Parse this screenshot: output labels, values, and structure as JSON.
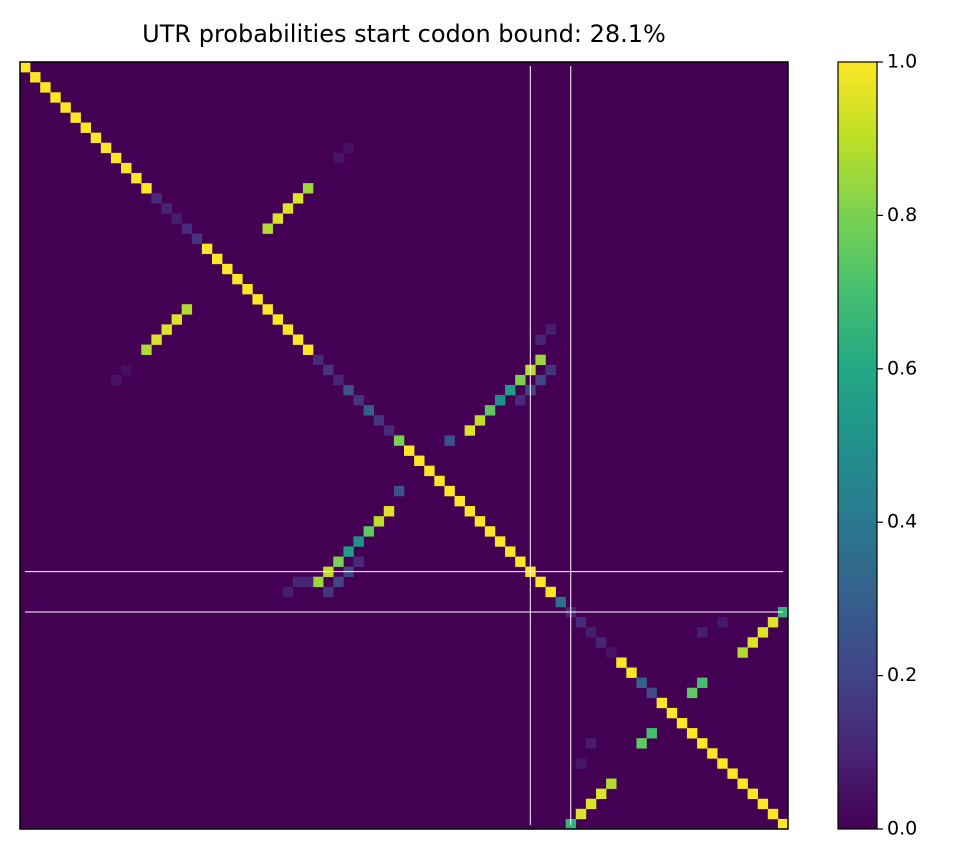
{
  "chart_data": {
    "type": "heatmap",
    "title": "UTR probabilities start codon bound: 28.1%",
    "colormap": "viridis",
    "xlim": [
      -0.5,
      75.5
    ],
    "ylim": [
      75.5,
      -0.5
    ],
    "clim": [
      0,
      1
    ],
    "cticks": [
      {
        "value": 0,
        "label": "0.0"
      },
      0.2,
      0.4,
      0.6,
      0.8,
      {
        "value": 1,
        "label": "1.0"
      }
    ],
    "vlines": [
      50,
      54
    ],
    "hlines": [
      50,
      54
    ],
    "line_color": "#ffffff",
    "cells": [
      [
        0,
        0,
        1
      ],
      [
        1,
        1,
        1
      ],
      [
        2,
        2,
        1
      ],
      [
        3,
        3,
        1
      ],
      [
        4,
        4,
        1
      ],
      [
        5,
        5,
        1
      ],
      [
        6,
        6,
        1
      ],
      [
        7,
        7,
        1
      ],
      [
        8,
        8,
        1
      ],
      [
        9,
        9,
        1
      ],
      [
        10,
        10,
        1
      ],
      [
        11,
        11,
        1
      ],
      [
        12,
        12,
        1
      ],
      [
        13,
        13,
        0.12
      ],
      [
        14,
        14,
        0.1
      ],
      [
        15,
        15,
        0.08
      ],
      [
        16,
        16,
        0.12
      ],
      [
        17,
        17,
        0.15
      ],
      [
        18,
        18,
        1
      ],
      [
        19,
        19,
        1
      ],
      [
        20,
        20,
        1
      ],
      [
        21,
        21,
        1
      ],
      [
        22,
        22,
        1
      ],
      [
        23,
        23,
        1
      ],
      [
        24,
        24,
        1
      ],
      [
        25,
        25,
        1
      ],
      [
        26,
        26,
        1
      ],
      [
        27,
        27,
        1
      ],
      [
        28,
        28,
        1
      ],
      [
        29,
        29,
        0.12
      ],
      [
        30,
        30,
        0.15
      ],
      [
        31,
        31,
        0.1
      ],
      [
        32,
        32,
        0.25
      ],
      [
        33,
        33,
        0.15
      ],
      [
        34,
        34,
        0.3
      ],
      [
        35,
        35,
        0.15
      ],
      [
        36,
        36,
        0.12
      ],
      [
        37,
        37,
        0.8
      ],
      [
        38,
        38,
        1
      ],
      [
        39,
        39,
        1
      ],
      [
        40,
        40,
        1
      ],
      [
        41,
        41,
        1
      ],
      [
        42,
        42,
        1
      ],
      [
        43,
        43,
        1
      ],
      [
        44,
        44,
        1
      ],
      [
        45,
        45,
        1
      ],
      [
        46,
        46,
        1
      ],
      [
        47,
        47,
        1
      ],
      [
        48,
        48,
        1
      ],
      [
        49,
        49,
        1
      ],
      [
        50,
        50,
        1
      ],
      [
        51,
        51,
        1
      ],
      [
        52,
        52,
        1
      ],
      [
        53,
        53,
        0.35
      ],
      [
        54,
        54,
        0.1
      ],
      [
        55,
        55,
        0.12
      ],
      [
        56,
        56,
        0.08
      ],
      [
        57,
        57,
        0.1
      ],
      [
        58,
        58,
        0.05
      ],
      [
        59,
        59,
        1
      ],
      [
        60,
        60,
        1
      ],
      [
        61,
        61,
        0.3
      ],
      [
        62,
        62,
        0.22
      ],
      [
        63,
        63,
        1
      ],
      [
        64,
        64,
        1
      ],
      [
        65,
        65,
        1
      ],
      [
        66,
        66,
        1
      ],
      [
        67,
        67,
        1
      ],
      [
        68,
        68,
        1
      ],
      [
        69,
        69,
        1
      ],
      [
        70,
        70,
        1
      ],
      [
        71,
        71,
        1
      ],
      [
        72,
        72,
        1
      ],
      [
        73,
        73,
        1
      ],
      [
        74,
        74,
        1
      ],
      [
        75,
        75,
        1
      ],
      [
        12,
        28,
        0.85
      ],
      [
        13,
        27,
        0.95
      ],
      [
        14,
        26,
        0.95
      ],
      [
        15,
        25,
        0.95
      ],
      [
        16,
        24,
        0.88
      ],
      [
        24,
        16,
        0.88
      ],
      [
        25,
        15,
        0.95
      ],
      [
        26,
        14,
        0.95
      ],
      [
        27,
        13,
        0.95
      ],
      [
        28,
        12,
        0.88
      ],
      [
        9,
        31,
        0.05
      ],
      [
        8,
        32,
        0.04
      ],
      [
        31,
        9,
        0.05
      ],
      [
        30,
        10,
        0.04
      ],
      [
        26,
        52,
        0.08
      ],
      [
        27,
        51,
        0.1
      ],
      [
        29,
        51,
        0.85
      ],
      [
        30,
        50,
        0.9
      ],
      [
        31,
        49,
        0.8
      ],
      [
        32,
        48,
        0.55
      ],
      [
        33,
        47,
        0.5
      ],
      [
        34,
        46,
        0.75
      ],
      [
        35,
        45,
        0.9
      ],
      [
        36,
        44,
        0.95
      ],
      [
        30,
        52,
        0.15
      ],
      [
        31,
        51,
        0.2
      ],
      [
        32,
        50,
        0.2
      ],
      [
        33,
        49,
        0.12
      ],
      [
        37,
        42,
        0.25
      ],
      [
        44,
        36,
        0.95
      ],
      [
        45,
        35,
        0.9
      ],
      [
        46,
        34,
        0.75
      ],
      [
        47,
        33,
        0.5
      ],
      [
        48,
        32,
        0.55
      ],
      [
        49,
        31,
        0.8
      ],
      [
        50,
        30,
        0.9
      ],
      [
        51,
        29,
        0.85
      ],
      [
        42,
        37,
        0.25
      ],
      [
        49,
        33,
        0.12
      ],
      [
        50,
        32,
        0.2
      ],
      [
        51,
        31,
        0.2
      ],
      [
        52,
        30,
        0.15
      ],
      [
        51,
        27,
        0.1
      ],
      [
        51,
        28,
        0.1
      ],
      [
        52,
        26,
        0.08
      ],
      [
        54,
        75,
        0.65
      ],
      [
        55,
        74,
        0.95
      ],
      [
        56,
        73,
        0.95
      ],
      [
        57,
        72,
        0.95
      ],
      [
        58,
        71,
        0.88
      ],
      [
        71,
        58,
        0.88
      ],
      [
        72,
        57,
        0.95
      ],
      [
        73,
        56,
        0.95
      ],
      [
        74,
        55,
        0.95
      ],
      [
        75,
        54,
        0.65
      ],
      [
        61,
        67,
        0.7
      ],
      [
        62,
        66,
        0.75
      ],
      [
        66,
        62,
        0.7
      ],
      [
        67,
        61,
        0.75
      ],
      [
        56,
        67,
        0.08
      ],
      [
        55,
        69,
        0.06
      ],
      [
        67,
        56,
        0.08
      ],
      [
        69,
        55,
        0.06
      ]
    ]
  }
}
